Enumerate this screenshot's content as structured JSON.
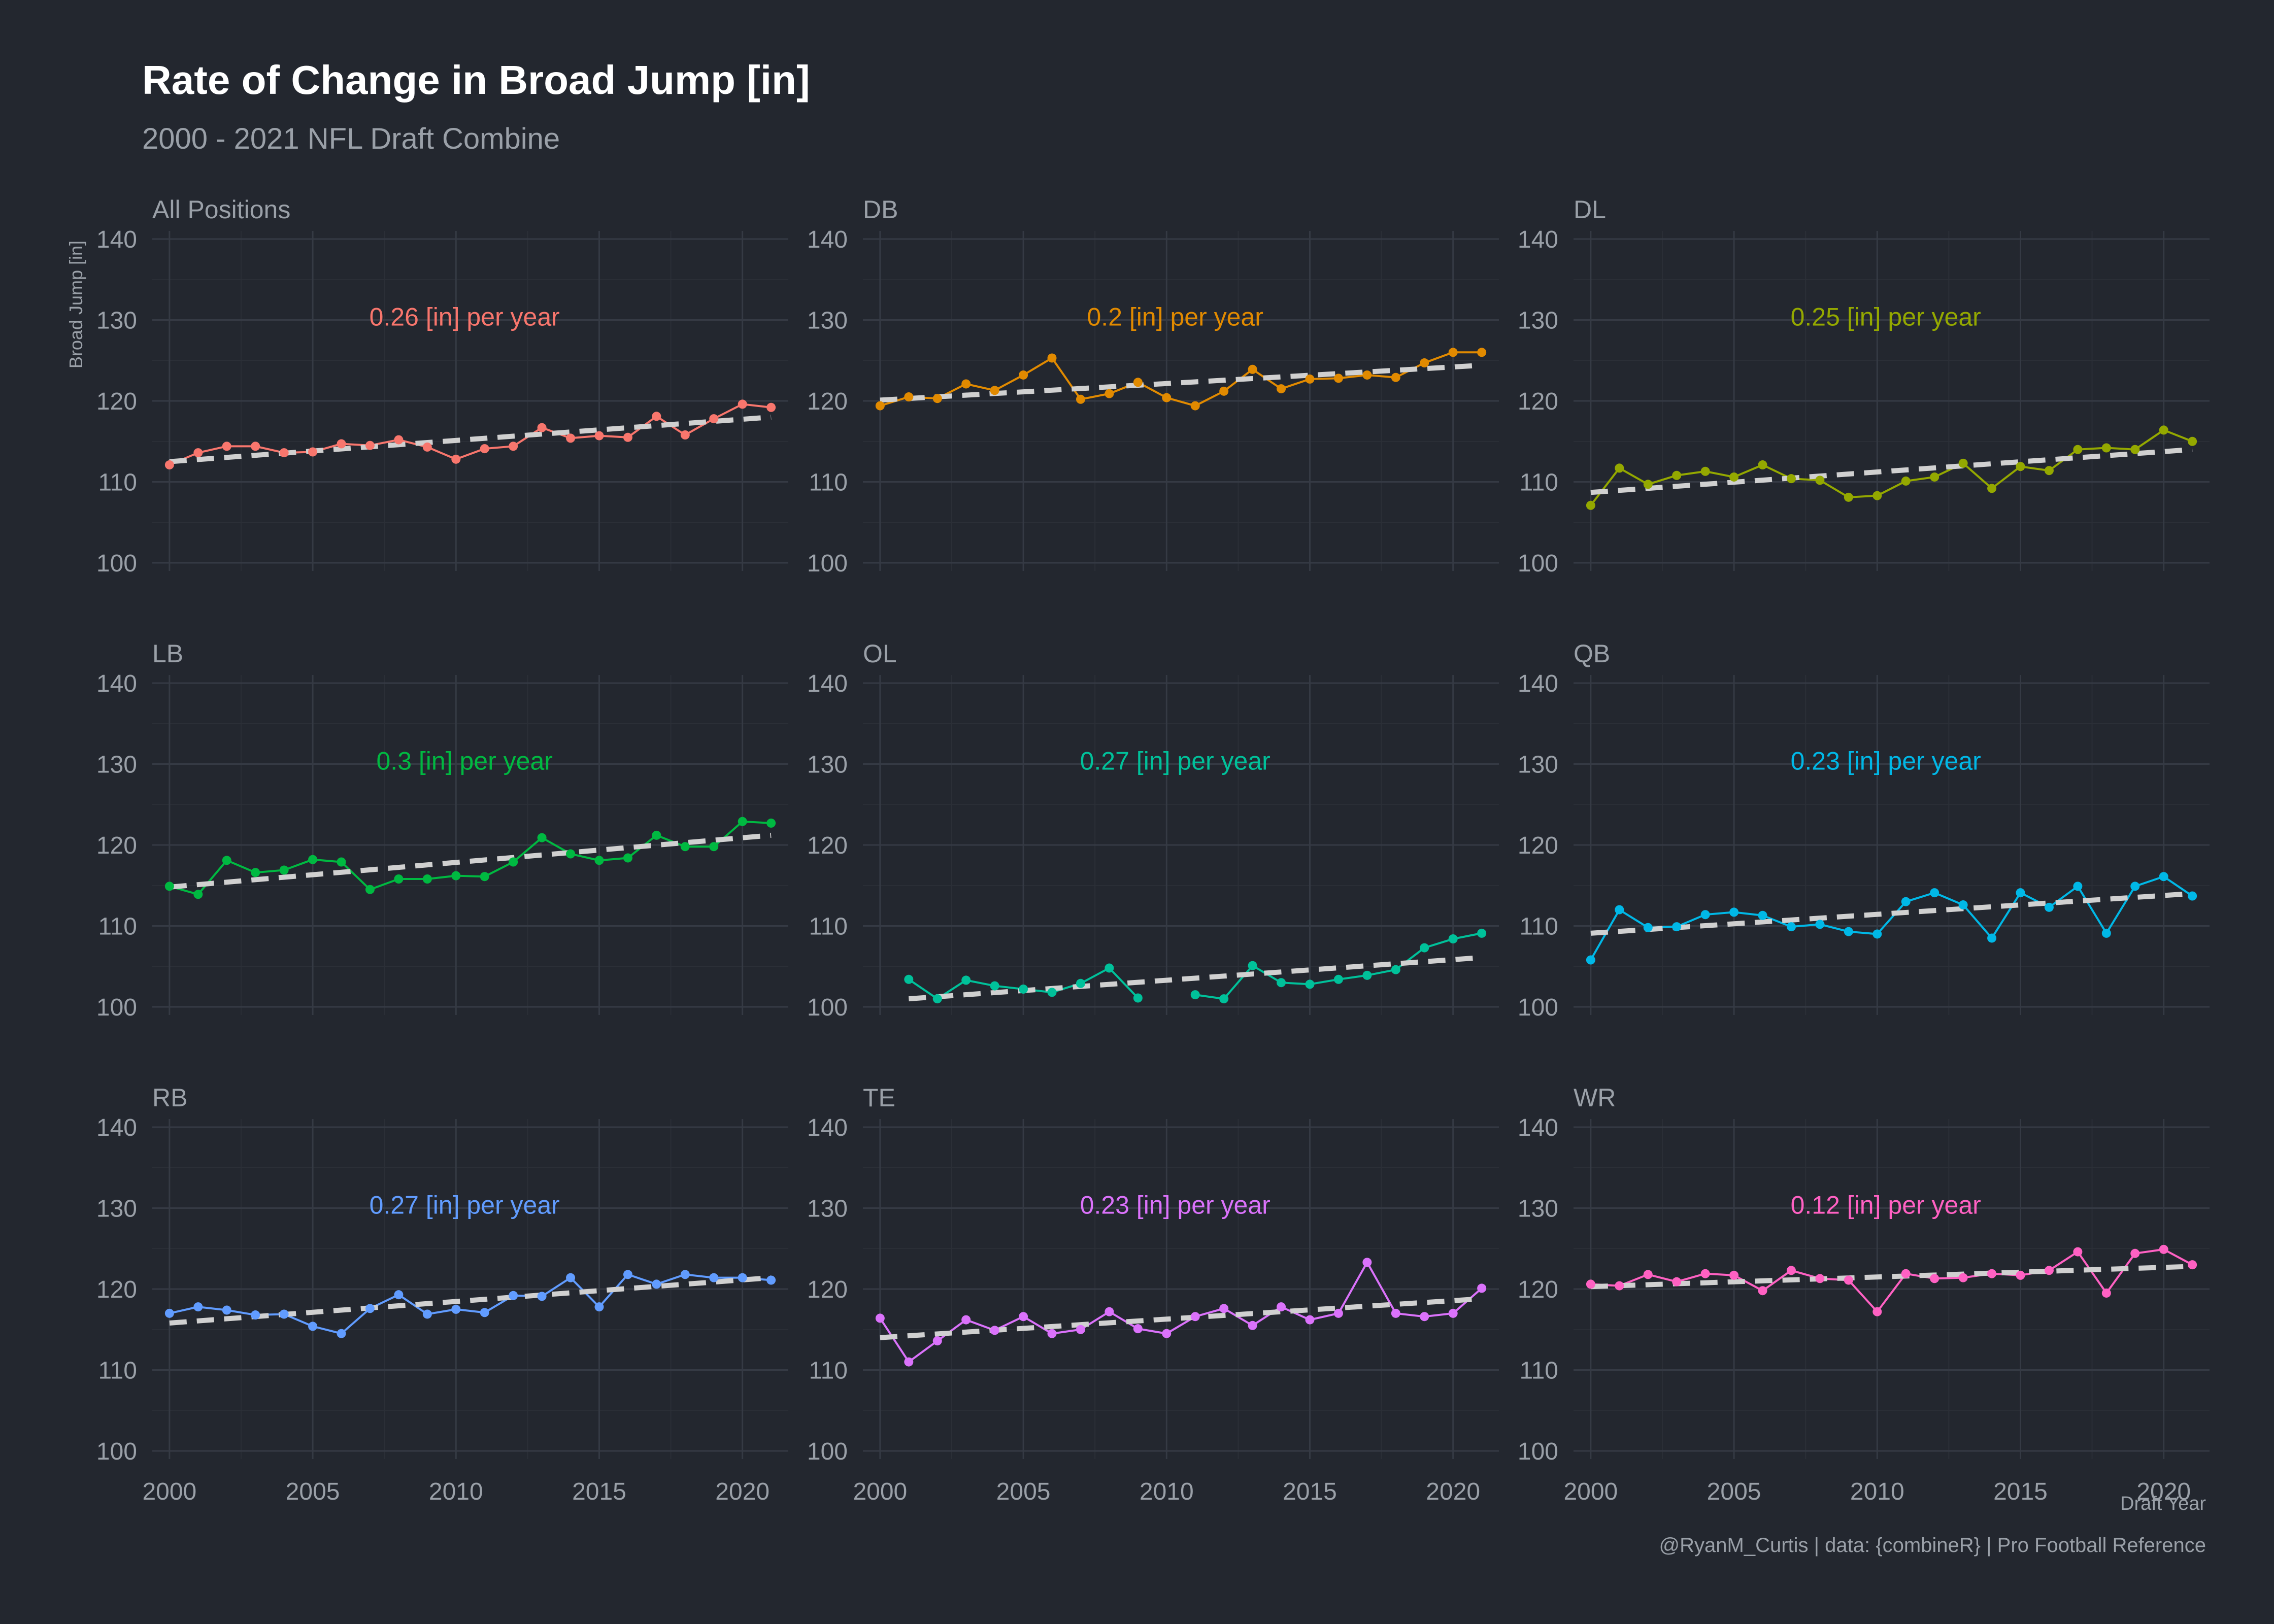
{
  "chart_data": {
    "type": "line",
    "title": "Rate of Change in Broad Jump [in]",
    "subtitle": "2000 - 2021 NFL Draft Combine",
    "xlabel": "Draft Year",
    "ylabel": "Broad Jump [in]",
    "caption": "@RyanM_Curtis | data: {combineR} | Pro Football Reference",
    "xlim": [
      1999.4,
      2021.6
    ],
    "ylim": [
      99,
      141
    ],
    "xticks": [
      2000,
      2005,
      2010,
      2015,
      2020
    ],
    "yticks": [
      100,
      110,
      120,
      130,
      140
    ],
    "trend_color": "#d0d0d0",
    "grid": true,
    "panels": [
      {
        "name": "All Positions",
        "color": "#f8766d",
        "annotation": "0.26 [in] per year",
        "x": [
          2000,
          2001,
          2002,
          2003,
          2004,
          2005,
          2006,
          2007,
          2008,
          2009,
          2010,
          2011,
          2012,
          2013,
          2014,
          2015,
          2016,
          2017,
          2018,
          2019,
          2020,
          2021
        ],
        "y": [
          112.1,
          113.6,
          114.4,
          114.4,
          113.6,
          113.7,
          114.7,
          114.5,
          115.2,
          114.3,
          112.8,
          114.1,
          114.4,
          116.7,
          115.4,
          115.7,
          115.5,
          118.1,
          115.8,
          117.8,
          119.6,
          119.2
        ],
        "trend": [
          112.5,
          118.0
        ]
      },
      {
        "name": "DB",
        "color": "#e18a00",
        "annotation": "0.2 [in] per year",
        "x": [
          2000,
          2001,
          2002,
          2003,
          2004,
          2005,
          2006,
          2007,
          2008,
          2009,
          2010,
          2011,
          2012,
          2013,
          2014,
          2015,
          2016,
          2017,
          2018,
          2019,
          2020,
          2021
        ],
        "y": [
          119.4,
          120.5,
          120.3,
          122.1,
          121.3,
          123.2,
          125.3,
          120.2,
          120.9,
          122.3,
          120.4,
          119.4,
          121.2,
          123.9,
          121.5,
          122.7,
          122.8,
          123.2,
          122.9,
          124.7,
          126.0,
          126.0
        ],
        "trend": [
          120.1,
          124.4
        ]
      },
      {
        "name": "DL",
        "color": "#94a800",
        "annotation": "0.25 [in] per year",
        "x": [
          2000,
          2001,
          2002,
          2003,
          2004,
          2005,
          2006,
          2007,
          2008,
          2009,
          2010,
          2011,
          2012,
          2013,
          2014,
          2015,
          2016,
          2017,
          2018,
          2019,
          2020,
          2021
        ],
        "y": [
          107.1,
          111.7,
          109.7,
          110.8,
          111.3,
          110.6,
          112.1,
          110.4,
          110.2,
          108.1,
          108.3,
          110.1,
          110.6,
          112.3,
          109.2,
          111.9,
          111.4,
          114.0,
          114.2,
          114.0,
          116.4,
          115.0
        ],
        "trend": [
          108.7,
          114.0
        ]
      },
      {
        "name": "LB",
        "color": "#00b941",
        "annotation": "0.3 [in] per year",
        "x": [
          2000,
          2001,
          2002,
          2003,
          2004,
          2005,
          2006,
          2007,
          2008,
          2009,
          2010,
          2011,
          2012,
          2013,
          2014,
          2015,
          2016,
          2017,
          2018,
          2019,
          2020,
          2021
        ],
        "y": [
          114.9,
          113.9,
          118.1,
          116.6,
          116.9,
          118.2,
          117.9,
          114.5,
          115.8,
          115.8,
          116.2,
          116.1,
          117.9,
          120.9,
          118.9,
          118.1,
          118.4,
          121.2,
          119.8,
          119.8,
          122.9,
          122.7
        ],
        "trend": [
          114.8,
          121.2
        ]
      },
      {
        "name": "OL",
        "color": "#00c19a",
        "annotation": "0.27 [in] per year",
        "x": [
          2001,
          2002,
          2003,
          2004,
          2005,
          2006,
          2007,
          2008,
          2009,
          null,
          2011,
          2012,
          2013,
          2014,
          2015,
          2016,
          2017,
          2018,
          2019,
          2020,
          2021
        ],
        "y": [
          103.4,
          101.0,
          103.3,
          102.6,
          102.2,
          101.8,
          102.9,
          104.8,
          101.1,
          null,
          101.5,
          101.0,
          105.1,
          103.0,
          102.8,
          103.4,
          103.9,
          104.6,
          107.3,
          108.4,
          109.1
        ],
        "trend": [
          101.0,
          106.1
        ]
      },
      {
        "name": "QB",
        "color": "#00b8e7",
        "annotation": "0.23 [in] per year",
        "x": [
          2000,
          2001,
          2002,
          2003,
          2004,
          2005,
          2006,
          2007,
          2008,
          2009,
          2010,
          2011,
          2012,
          2013,
          2014,
          2015,
          2016,
          2017,
          2018,
          2019,
          2020,
          2021
        ],
        "y": [
          105.8,
          112.0,
          109.8,
          109.9,
          111.4,
          111.7,
          111.3,
          109.9,
          110.2,
          109.3,
          109.0,
          113.0,
          114.1,
          112.6,
          108.5,
          114.1,
          112.3,
          114.9,
          109.1,
          114.9,
          116.1,
          113.7
        ],
        "trend": [
          109.1,
          114.0
        ]
      },
      {
        "name": "RB",
        "color": "#619cff",
        "annotation": "0.27 [in] per year",
        "x": [
          2000,
          2001,
          2002,
          2003,
          2004,
          2005,
          2006,
          2007,
          2008,
          2009,
          2010,
          2011,
          2012,
          2013,
          2014,
          2015,
          2016,
          2017,
          2018,
          2019,
          2020,
          2021
        ],
        "y": [
          117.0,
          117.8,
          117.4,
          116.8,
          116.9,
          115.4,
          114.5,
          117.6,
          119.3,
          116.9,
          117.5,
          117.1,
          119.2,
          119.1,
          121.4,
          117.8,
          121.8,
          120.6,
          121.8,
          121.4,
          121.4,
          121.1
        ],
        "trend": [
          115.8,
          121.4
        ]
      },
      {
        "name": "TE",
        "color": "#db72fb",
        "annotation": "0.23 [in] per year",
        "x": [
          2000,
          2001,
          2002,
          2003,
          2004,
          2005,
          2006,
          2007,
          2008,
          2009,
          2010,
          2011,
          2012,
          2013,
          2014,
          2015,
          2016,
          2017,
          2018,
          2019,
          2020,
          2021
        ],
        "y": [
          116.4,
          111.0,
          113.6,
          116.2,
          114.9,
          116.6,
          114.5,
          115.0,
          117.2,
          115.1,
          114.5,
          116.6,
          117.6,
          115.5,
          117.8,
          116.2,
          117.0,
          123.3,
          117.0,
          116.6,
          117.0,
          120.1
        ],
        "trend": [
          114.0,
          118.8
        ]
      },
      {
        "name": "WR",
        "color": "#ff61c3",
        "annotation": "0.12 [in] per year",
        "x": [
          2000,
          2001,
          2002,
          2003,
          2004,
          2005,
          2006,
          2007,
          2008,
          2009,
          2010,
          2011,
          2012,
          2013,
          2014,
          2015,
          2016,
          2017,
          2018,
          2019,
          2020,
          2021
        ],
        "y": [
          120.6,
          120.4,
          121.8,
          120.9,
          121.9,
          121.7,
          119.8,
          122.3,
          121.3,
          121.1,
          117.2,
          121.9,
          121.3,
          121.4,
          121.9,
          121.7,
          122.3,
          124.6,
          119.5,
          124.4,
          124.9,
          123.0
        ],
        "trend": [
          120.3,
          122.8
        ]
      }
    ]
  }
}
